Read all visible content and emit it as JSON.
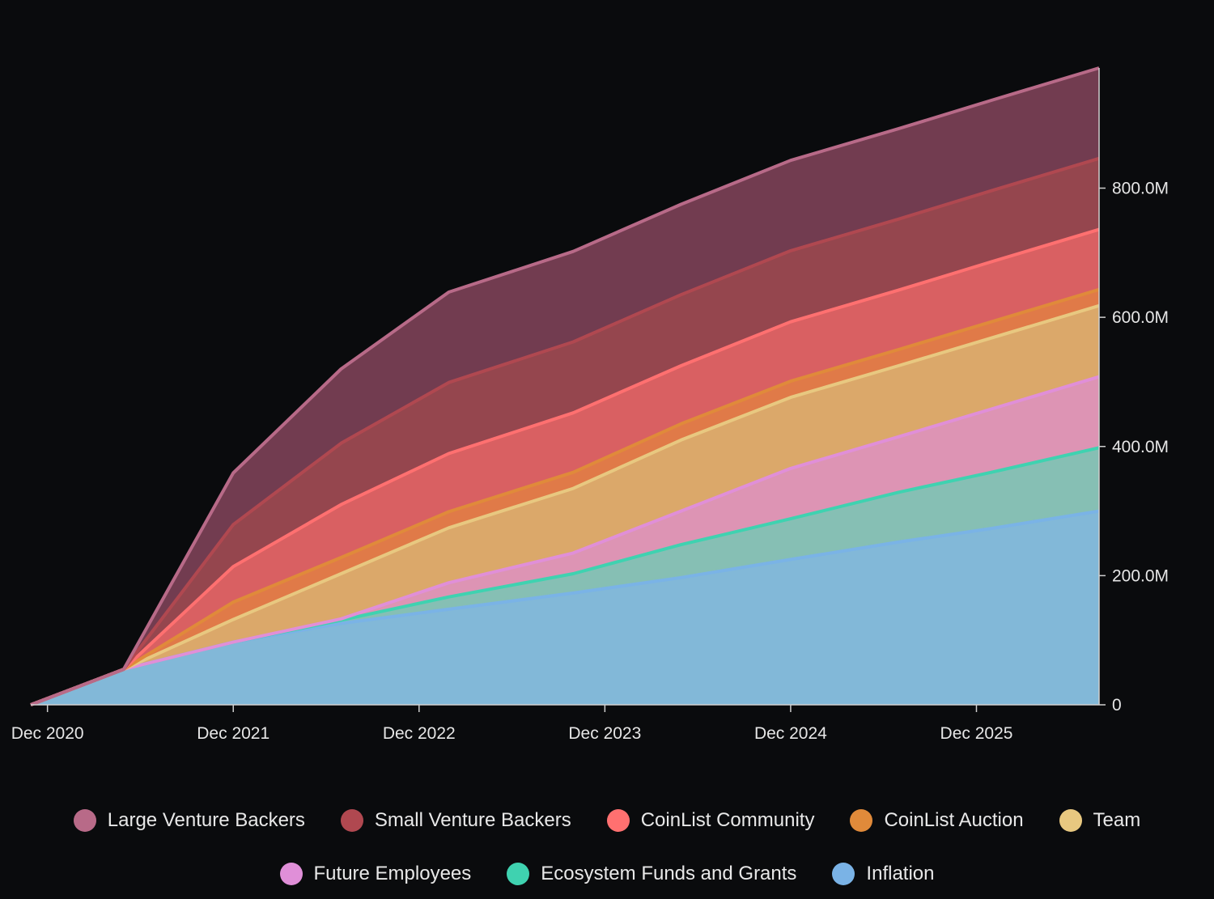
{
  "chart_data": {
    "type": "area",
    "stacked": true,
    "title": "",
    "xlabel": "",
    "ylabel": "",
    "ylim": [
      0,
      980000000
    ],
    "yticks": [
      {
        "value": 0,
        "label": "0"
      },
      {
        "value": 200000000,
        "label": "200.0M"
      },
      {
        "value": 400000000,
        "label": "400.0M"
      },
      {
        "value": 600000000,
        "label": "600.0M"
      },
      {
        "value": 800000000,
        "label": "800.0M"
      }
    ],
    "xlim": [
      2020.83,
      2026.58
    ],
    "xticks": [
      {
        "value": 2020.92,
        "label": "Dec 2020"
      },
      {
        "value": 2021.92,
        "label": "Dec 2021"
      },
      {
        "value": 2022.92,
        "label": "Dec 2022"
      },
      {
        "value": 2023.92,
        "label": "Dec 2023"
      },
      {
        "value": 2024.92,
        "label": "Dec 2024"
      },
      {
        "value": 2025.92,
        "label": "Dec 2025"
      }
    ],
    "x": [
      2020.83,
      2021.33,
      2021.92,
      2022.5,
      2023.08,
      2023.75,
      2024.33,
      2024.92,
      2025.5,
      2026.0,
      2026.58
    ],
    "series": [
      {
        "name": "Inflation",
        "color": "#82b8d8",
        "line": "#7ab3e6",
        "values": [
          0,
          55,
          97,
          126,
          148,
          173,
          197,
          225,
          252,
          273,
          300
        ]
      },
      {
        "name": "Ecosystem Funds and Grants",
        "color": "#86bfb4",
        "line": "#3fd2b0",
        "values": [
          0,
          0,
          0,
          5,
          19,
          30,
          51,
          63,
          77,
          87,
          98
        ]
      },
      {
        "name": "Future Employees",
        "color": "#dd94b4",
        "line": "#e08fd8",
        "values": [
          0,
          0,
          0,
          2,
          22,
          32,
          52,
          78,
          86,
          98,
          110
        ]
      },
      {
        "name": "Team",
        "color": "#dba86a",
        "line": "#e8c880",
        "values": [
          0,
          0,
          35,
          70,
          85,
          100,
          110,
          110,
          110,
          110,
          110
        ]
      },
      {
        "name": "CoinList Auction",
        "color": "#e07a48",
        "line": "#e08a3a",
        "values": [
          0,
          0,
          27,
          25,
          25,
          25,
          25,
          25,
          25,
          25,
          25
        ]
      },
      {
        "name": "CoinList Community",
        "color": "#d96062",
        "line": "#ff7070",
        "values": [
          0,
          0,
          55,
          82,
          90,
          92,
          90,
          92,
          92,
          93,
          93
        ]
      },
      {
        "name": "Small Venture Backers",
        "color": "#95464e",
        "line": "#b04850",
        "values": [
          0,
          0,
          65,
          95,
          110,
          110,
          110,
          110,
          110,
          110,
          110
        ]
      },
      {
        "name": "Large Venture Backers",
        "color": "#723c50",
        "line": "#b86a88",
        "values": [
          0,
          0,
          80,
          115,
          140,
          140,
          140,
          140,
          140,
          140,
          140
        ]
      }
    ],
    "value_unit": 1000000,
    "legend_position": "bottom",
    "legend": {
      "row1": [
        "Large Venture Backers",
        "Small Venture Backers",
        "CoinList Community",
        "CoinList Auction",
        "Team"
      ],
      "row2": [
        "Future Employees",
        "Ecosystem Funds and Grants",
        "Inflation"
      ]
    }
  }
}
